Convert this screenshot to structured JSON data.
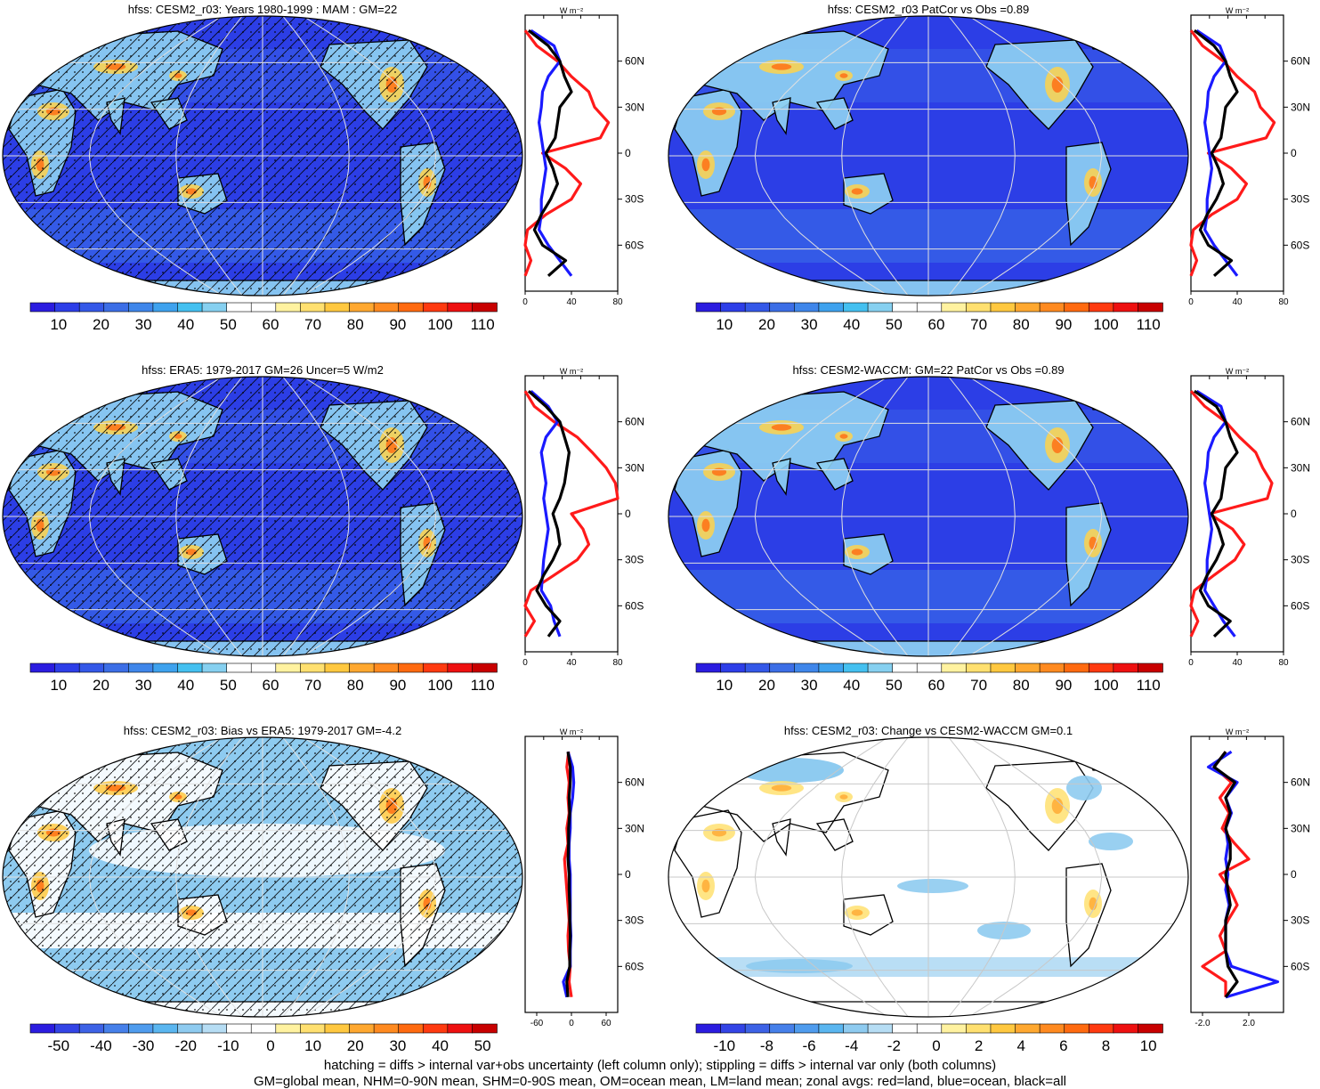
{
  "footer": {
    "line1": "hatching = diffs > internal var+obs uncertainty (left column only); stippling = diffs > internal var only (both columns)",
    "line2": "GM=global mean, NHM=0-90N mean, SHM=0-90S mean, OM=ocean mean, LM=land mean; zonal avgs: red=land, blue=ocean, black=all"
  },
  "colors": {
    "land_line": "#ff1a1a",
    "ocean_line": "#1a1aff",
    "all_line": "#000000"
  },
  "chart_data": [
    {
      "type": "heatmap",
      "title": "hfss: CESM2_r03: Years 1980-1999 : MAM : GM=22",
      "style": "abs",
      "hatch": true,
      "stipple": true,
      "colorbar": {
        "ticks": [
          "10",
          "20",
          "30",
          "40",
          "50",
          "60",
          "70",
          "80",
          "90",
          "100",
          "110"
        ]
      },
      "profile": {
        "units": "W m⁻²",
        "xlim": [
          0,
          80
        ],
        "xticks": [
          "0",
          "40",
          "80"
        ],
        "lat_ticks": [
          "60N",
          "30N",
          "0",
          "30S",
          "60S"
        ],
        "lat": [
          80,
          70,
          60,
          50,
          40,
          30,
          20,
          10,
          0,
          -10,
          -20,
          -30,
          -40,
          -50,
          -60,
          -70,
          -80
        ],
        "land": [
          0,
          10,
          28,
          40,
          55,
          60,
          72,
          65,
          15,
          35,
          48,
          40,
          18,
          2,
          0,
          5,
          0
        ],
        "ocean": [
          5,
          25,
          30,
          20,
          15,
          14,
          12,
          14,
          16,
          18,
          16,
          14,
          14,
          12,
          20,
          30,
          40
        ],
        "all": [
          3,
          20,
          30,
          34,
          40,
          30,
          28,
          26,
          18,
          24,
          28,
          22,
          14,
          8,
          15,
          35,
          20
        ]
      }
    },
    {
      "type": "heatmap",
      "title": "hfss: CESM2_r03 PatCor vs Obs =0.89",
      "style": "abs",
      "hatch": false,
      "stipple": false,
      "colorbar": {
        "ticks": [
          "10",
          "20",
          "30",
          "40",
          "50",
          "60",
          "70",
          "80",
          "90",
          "100",
          "110"
        ]
      },
      "profile": {
        "units": "W m⁻²",
        "xlim": [
          0,
          80
        ],
        "xticks": [
          "0",
          "40",
          "80"
        ],
        "lat_ticks": [
          "60N",
          "30N",
          "0",
          "30S",
          "60S"
        ],
        "lat": [
          80,
          70,
          60,
          50,
          40,
          30,
          20,
          10,
          0,
          -10,
          -20,
          -30,
          -40,
          -50,
          -60,
          -70,
          -80
        ],
        "land": [
          0,
          10,
          28,
          40,
          55,
          60,
          72,
          65,
          15,
          35,
          48,
          40,
          18,
          2,
          0,
          5,
          0
        ],
        "ocean": [
          5,
          25,
          30,
          20,
          15,
          14,
          12,
          14,
          16,
          18,
          16,
          14,
          14,
          12,
          20,
          30,
          40
        ],
        "all": [
          3,
          20,
          30,
          34,
          40,
          30,
          28,
          26,
          18,
          24,
          28,
          22,
          14,
          8,
          15,
          35,
          20
        ]
      }
    },
    {
      "type": "heatmap",
      "title": "hfss: ERA5: 1979-2017 GM=26 Uncer=5 W/m2",
      "style": "abs",
      "hatch": true,
      "stipple": true,
      "colorbar": {
        "ticks": [
          "10",
          "20",
          "30",
          "40",
          "50",
          "60",
          "70",
          "80",
          "90",
          "100",
          "110"
        ]
      },
      "profile": {
        "units": "W m⁻²",
        "xlim": [
          0,
          80
        ],
        "xticks": [
          "0",
          "40",
          "80"
        ],
        "lat_ticks": [
          "60N",
          "30N",
          "0",
          "30S",
          "60S"
        ],
        "lat": [
          80,
          70,
          60,
          50,
          40,
          30,
          20,
          10,
          0,
          -10,
          -20,
          -30,
          -40,
          -50,
          -60,
          -70,
          -80
        ],
        "land": [
          0,
          8,
          25,
          45,
          58,
          70,
          78,
          85,
          40,
          50,
          55,
          45,
          25,
          5,
          0,
          8,
          0
        ],
        "ocean": [
          5,
          20,
          28,
          18,
          14,
          16,
          18,
          16,
          18,
          20,
          18,
          16,
          15,
          14,
          22,
          25,
          30
        ],
        "all": [
          3,
          18,
          30,
          34,
          38,
          36,
          34,
          30,
          24,
          28,
          30,
          24,
          16,
          10,
          18,
          30,
          20
        ]
      }
    },
    {
      "type": "heatmap",
      "title": "hfss: CESM2-WACCM: GM=22 PatCor vs Obs =0.89",
      "style": "abs",
      "hatch": false,
      "stipple": false,
      "colorbar": {
        "ticks": [
          "10",
          "20",
          "30",
          "40",
          "50",
          "60",
          "70",
          "80",
          "90",
          "100",
          "110"
        ]
      },
      "profile": {
        "units": "W m⁻²",
        "xlim": [
          0,
          80
        ],
        "xticks": [
          "0",
          "40",
          "80"
        ],
        "lat_ticks": [
          "60N",
          "30N",
          "0",
          "30S",
          "60S"
        ],
        "lat": [
          80,
          70,
          60,
          50,
          40,
          30,
          20,
          10,
          0,
          -10,
          -20,
          -30,
          -40,
          -50,
          -60,
          -70,
          -80
        ],
        "land": [
          0,
          12,
          30,
          42,
          56,
          62,
          70,
          66,
          16,
          36,
          46,
          38,
          20,
          3,
          0,
          6,
          0
        ],
        "ocean": [
          5,
          26,
          30,
          20,
          15,
          14,
          12,
          14,
          16,
          18,
          16,
          14,
          14,
          12,
          20,
          28,
          38
        ],
        "all": [
          3,
          22,
          30,
          34,
          40,
          30,
          28,
          26,
          18,
          24,
          28,
          22,
          14,
          8,
          15,
          34,
          20
        ]
      }
    },
    {
      "type": "heatmap",
      "title": "hfss: CESM2_r03: Bias vs ERA5: 1979-2017 GM=-4.2",
      "style": "bias",
      "hatch": true,
      "stipple": true,
      "colorbar": {
        "ticks": [
          "-50",
          "-40",
          "-30",
          "-20",
          "-10",
          "0",
          "10",
          "20",
          "30",
          "40",
          "50"
        ]
      },
      "profile": {
        "units": "W m⁻²",
        "xlim": [
          -80,
          80
        ],
        "xticks": [
          "-60",
          "0",
          "60"
        ],
        "lat_ticks": [
          "60N",
          "30N",
          "0",
          "30S",
          "60S"
        ],
        "lat": [
          80,
          70,
          60,
          50,
          40,
          30,
          20,
          10,
          0,
          -10,
          -20,
          -30,
          -40,
          -50,
          -60,
          -70,
          -80
        ],
        "land": [
          -5,
          -8,
          -4,
          -6,
          -4,
          -8,
          -6,
          -12,
          -10,
          -8,
          -6,
          -4,
          -6,
          -5,
          -2,
          -4,
          0
        ],
        "ocean": [
          -6,
          2,
          4,
          2,
          -2,
          -2,
          -4,
          -4,
          -2,
          -2,
          -2,
          -2,
          -1,
          -2,
          -2,
          -14,
          -8
        ],
        "all": [
          -6,
          -2,
          -2,
          -4,
          -3,
          -5,
          -5,
          -6,
          -4,
          -4,
          -3,
          -3,
          -2,
          -3,
          -3,
          -8,
          -6
        ]
      }
    },
    {
      "type": "heatmap",
      "title": "hfss: CESM2_r03: Change vs CESM2-WACCM GM=0.1",
      "style": "diff",
      "hatch": false,
      "stipple": false,
      "colorbar": {
        "ticks": [
          "-10",
          "-8",
          "-6",
          "-4",
          "-2",
          "0",
          "2",
          "4",
          "6",
          "8",
          "10"
        ]
      },
      "profile": {
        "units": "W m⁻²",
        "xlim": [
          -3,
          5
        ],
        "xticks": [
          "-2.0",
          "2.0"
        ],
        "lat_ticks": [
          "60N",
          "30N",
          "0",
          "30S",
          "60S"
        ],
        "lat": [
          80,
          70,
          60,
          50,
          40,
          30,
          20,
          10,
          0,
          -10,
          -20,
          -30,
          -40,
          -50,
          -60,
          -70,
          -80
        ],
        "land": [
          0,
          -1,
          0.5,
          -0.5,
          0.3,
          -0.3,
          0.8,
          2,
          -0.5,
          0.4,
          1,
          0.2,
          -0.5,
          0,
          -2,
          0,
          0
        ],
        "ocean": [
          0.5,
          -1.5,
          1,
          0,
          0.5,
          0,
          0.2,
          0,
          0.2,
          0,
          0.3,
          0,
          0,
          0,
          0.5,
          4.5,
          0
        ],
        "all": [
          0,
          -1,
          0.8,
          0,
          0.4,
          0,
          0.4,
          0.4,
          0,
          0.2,
          0.4,
          0,
          0,
          0,
          0.2,
          1,
          0
        ]
      }
    }
  ]
}
